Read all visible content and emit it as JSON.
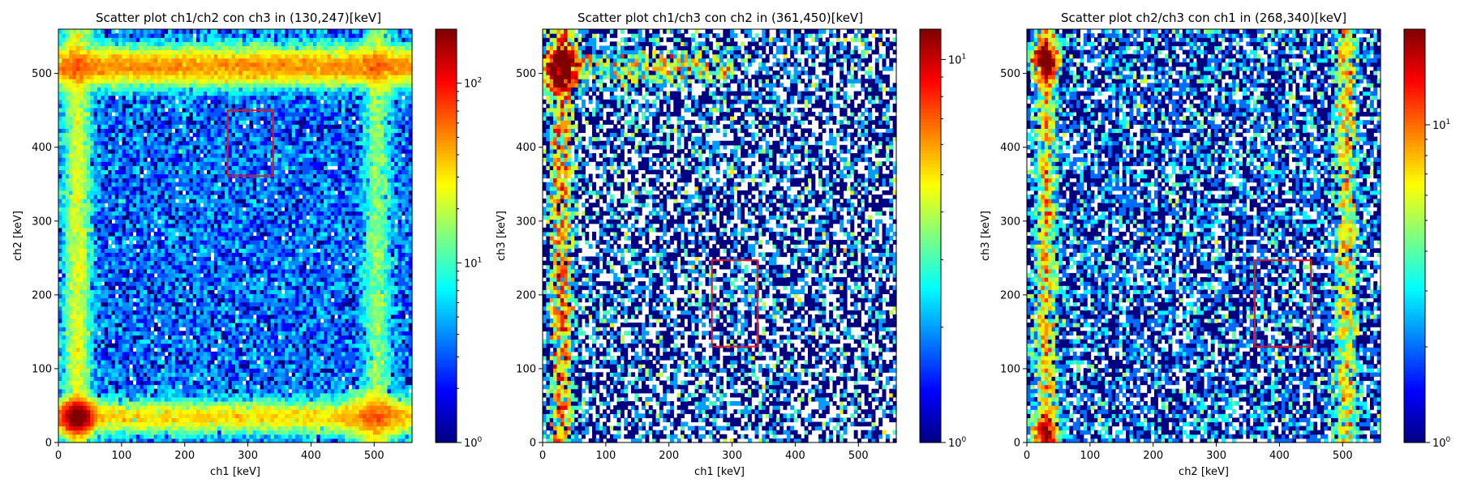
{
  "colormap": "jet",
  "box_color": "#e8141c",
  "chart_data": [
    {
      "type": "heatmap",
      "title": "Scatter plot ch1/ch2 con ch3 in (130,247)[keV]",
      "xlabel": "ch1 [keV]",
      "ylabel": "ch2 [keV]",
      "xlim": [
        0,
        560
      ],
      "ylim": [
        0,
        560
      ],
      "xticks": [
        0,
        100,
        200,
        300,
        400,
        500
      ],
      "yticks": [
        0,
        100,
        200,
        300,
        400,
        500
      ],
      "color_scale": "log",
      "clim": [
        1,
        200
      ],
      "colorbar_ticks": [
        {
          "value": 1,
          "base": "10",
          "exp": "0"
        },
        {
          "value": 10,
          "base": "10",
          "exp": "1"
        },
        {
          "value": 100,
          "base": "10",
          "exp": "2"
        }
      ],
      "bins": 100,
      "features": [
        {
          "kind": "blob",
          "x": 30,
          "y": 35,
          "peak": 200,
          "sx": 14,
          "sy": 12
        },
        {
          "kind": "hband",
          "y": 510,
          "width": 30,
          "x0": 0,
          "x1": 560,
          "level": 45
        },
        {
          "kind": "hband",
          "y": 35,
          "width": 25,
          "x0": 0,
          "x1": 560,
          "level": 30
        },
        {
          "kind": "vband",
          "x": 30,
          "width": 25,
          "y0": 0,
          "y1": 560,
          "level": 20
        },
        {
          "kind": "vband",
          "x": 505,
          "width": 25,
          "y0": 0,
          "y1": 560,
          "level": 12
        },
        {
          "kind": "blob",
          "x": 500,
          "y": 35,
          "peak": 25,
          "sx": 30,
          "sy": 20
        }
      ],
      "background_level": 3.5,
      "box": {
        "x0": 268,
        "x1": 340,
        "y0": 361,
        "y1": 450
      }
    },
    {
      "type": "heatmap",
      "title": "Scatter plot ch1/ch3 con ch2 in (361,450)[keV]",
      "xlabel": "ch1 [keV]",
      "ylabel": "ch3 [keV]",
      "xlim": [
        0,
        560
      ],
      "ylim": [
        0,
        560
      ],
      "xticks": [
        0,
        100,
        200,
        300,
        400,
        500
      ],
      "yticks": [
        0,
        100,
        200,
        300,
        400,
        500
      ],
      "color_scale": "log",
      "clim": [
        1,
        12
      ],
      "colorbar_ticks": [
        {
          "value": 1,
          "base": "10",
          "exp": "0"
        },
        {
          "value": 10,
          "base": "10",
          "exp": "1"
        }
      ],
      "bins": 100,
      "features": [
        {
          "kind": "vband",
          "x": 30,
          "width": 22,
          "y0": 0,
          "y1": 560,
          "level": 5
        },
        {
          "kind": "blob",
          "x": 32,
          "y": 510,
          "peak": 12,
          "sx": 15,
          "sy": 20
        },
        {
          "kind": "hband",
          "y": 510,
          "width": 30,
          "x0": 0,
          "x1": 300,
          "level": 3
        }
      ],
      "background_level": 1.0,
      "box": {
        "x0": 268,
        "x1": 340,
        "y0": 130,
        "y1": 247
      }
    },
    {
      "type": "heatmap",
      "title": "Scatter plot  ch2/ch3 con ch1 in (268,340)[keV]",
      "xlabel": "ch2 [keV]",
      "ylabel": "ch3 [keV]",
      "xlim": [
        0,
        560
      ],
      "ylim": [
        0,
        560
      ],
      "xticks": [
        0,
        100,
        200,
        300,
        400,
        500
      ],
      "yticks": [
        0,
        100,
        200,
        300,
        400,
        500
      ],
      "color_scale": "log",
      "clim": [
        1,
        20
      ],
      "colorbar_ticks": [
        {
          "value": 1,
          "base": "10",
          "exp": "0"
        },
        {
          "value": 10,
          "base": "10",
          "exp": "1"
        }
      ],
      "bins": 100,
      "features": [
        {
          "kind": "vband",
          "x": 30,
          "width": 20,
          "y0": 0,
          "y1": 560,
          "level": 6
        },
        {
          "kind": "vband",
          "x": 505,
          "width": 22,
          "y0": 0,
          "y1": 560,
          "level": 5
        },
        {
          "kind": "blob",
          "x": 30,
          "y": 520,
          "peak": 20,
          "sx": 12,
          "sy": 15
        },
        {
          "kind": "blob",
          "x": 30,
          "y": 15,
          "peak": 12,
          "sx": 12,
          "sy": 15
        }
      ],
      "background_level": 1.4,
      "box": {
        "x0": 361,
        "x1": 450,
        "y0": 130,
        "y1": 247
      }
    }
  ]
}
